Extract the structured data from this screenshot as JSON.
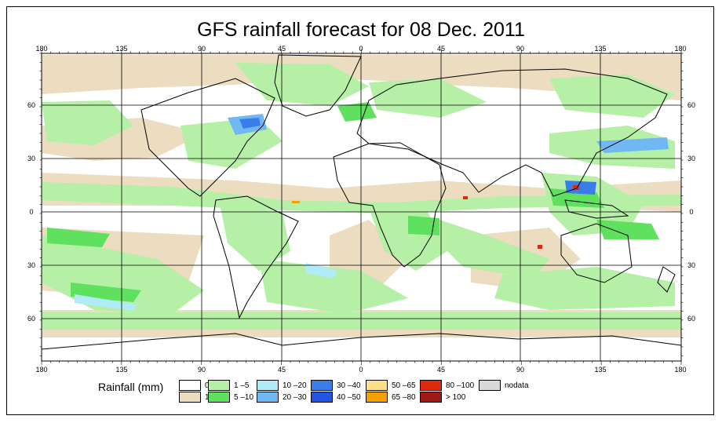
{
  "title": "GFS rainfall forecast for 08 Dec. 2011",
  "axes": {
    "lon_ticks": [
      "180",
      "135",
      "90",
      "45",
      "0",
      "45",
      "90",
      "135",
      "180"
    ],
    "lat_ticks": [
      "60",
      "30",
      "0",
      "30",
      "60"
    ]
  },
  "legend": {
    "label": "Rainfall (mm)",
    "items": [
      {
        "label": "0",
        "color": "#ffffff"
      },
      {
        "label": "1",
        "color": "#ecdcc0"
      },
      {
        "label": "1 –5",
        "color": "#b6f0a6"
      },
      {
        "label": "5 –10",
        "color": "#5fe05f"
      },
      {
        "label": "10 –20",
        "color": "#b0ecf8"
      },
      {
        "label": "20 –30",
        "color": "#70b8f4"
      },
      {
        "label": "30 –40",
        "color": "#3a7ce8"
      },
      {
        "label": "40 –50",
        "color": "#1f55e0"
      },
      {
        "label": "50 –65",
        "color": "#ffe08a"
      },
      {
        "label": "65 –80",
        "color": "#f5a000"
      },
      {
        "label": "80 –100",
        "color": "#e02a10"
      },
      {
        "label": "> 100",
        "color": "#a01818"
      },
      {
        "label": "nodata",
        "color": "#d8d8d8"
      }
    ]
  },
  "colors": {
    "land_outline": "#000000",
    "grid": "#000000"
  }
}
